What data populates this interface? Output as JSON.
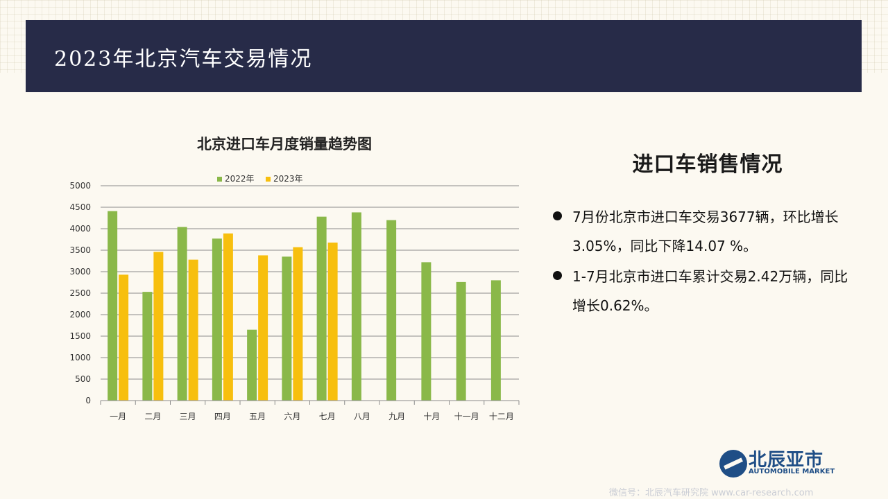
{
  "header": {
    "title": "2023年北京汽车交易情况"
  },
  "side": {
    "title": "进口车销售情况",
    "bullets": [
      "7月份北京市进口车交易3677辆，环比增长3.05%，同比下降14.07 %。",
      "1-7月北京市进口车累计交易2.42万辆，同比增长0.62%。"
    ]
  },
  "logo": {
    "cn": "北辰亚市",
    "en": "AUTOMOBILE MARKET"
  },
  "watermark": "微信号：北辰汽车研究院 www.car-research.com",
  "chart_data": {
    "type": "bar",
    "title": "北京进口车月度销量趋势图",
    "categories": [
      "一月",
      "二月",
      "三月",
      "四月",
      "五月",
      "六月",
      "七月",
      "八月",
      "九月",
      "十月",
      "十一月",
      "十二月"
    ],
    "series": [
      {
        "name": "2022年",
        "color": "#8ab849",
        "values": [
          4410,
          2530,
          4040,
          3770,
          1650,
          3350,
          4280,
          4380,
          4200,
          3220,
          2760,
          2800
        ]
      },
      {
        "name": "2023年",
        "color": "#f7bf0e",
        "values": [
          2930,
          3460,
          3280,
          3890,
          3380,
          3570,
          3677,
          null,
          null,
          null,
          null,
          null
        ]
      }
    ],
    "ylim": [
      0,
      5000
    ],
    "yticks": [
      0,
      500,
      1000,
      1500,
      2000,
      2500,
      3000,
      3500,
      4000,
      4500,
      5000
    ],
    "grid": true,
    "legend": "top"
  }
}
